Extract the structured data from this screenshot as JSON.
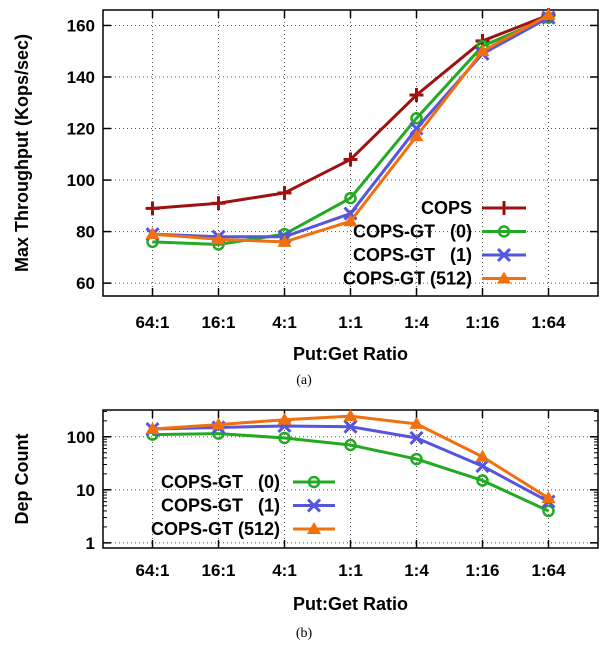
{
  "chart_data": [
    {
      "type": "line",
      "categories": [
        "64:1",
        "16:1",
        "4:1",
        "1:1",
        "1:4",
        "1:16",
        "1:64"
      ],
      "xlabel": "Put:Get Ratio",
      "ylabel": "Max Throughput (Kops/sec)",
      "ylim": [
        55,
        166
      ],
      "yticks": [
        60,
        80,
        100,
        120,
        140,
        160
      ],
      "scale": "linear",
      "grid": true,
      "legend": "right",
      "caption": "(a)",
      "series": [
        {
          "name": "COPS",
          "color": "#a01010",
          "marker": "plus",
          "values": [
            89,
            91,
            95,
            108,
            133,
            154,
            164
          ]
        },
        {
          "name": "COPS-GT   (0)",
          "color": "#22aa22",
          "marker": "circle",
          "values": [
            76,
            75,
            79,
            93,
            124,
            152,
            163
          ]
        },
        {
          "name": "COPS-GT   (1)",
          "color": "#5555dd",
          "marker": "x",
          "values": [
            79,
            78,
            78,
            87,
            120,
            149,
            163
          ]
        },
        {
          "name": "COPS-GT (512)",
          "color": "#f07010",
          "marker": "triangle",
          "values": [
            79,
            77,
            76,
            84,
            117,
            150,
            164
          ]
        }
      ]
    },
    {
      "type": "line",
      "categories": [
        "64:1",
        "16:1",
        "4:1",
        "1:1",
        "1:4",
        "1:16",
        "1:64"
      ],
      "xlabel": "Put:Get Ratio",
      "ylabel": "Dep Count",
      "ylim": [
        0.8,
        320
      ],
      "yticks": [
        1,
        10,
        100
      ],
      "scale": "log",
      "grid": true,
      "legend": "left",
      "caption": "(b)",
      "series": [
        {
          "name": "COPS-GT   (0)",
          "color": "#22aa22",
          "marker": "circle",
          "values": [
            110,
            115,
            95,
            70,
            38,
            15,
            4
          ]
        },
        {
          "name": "COPS-GT   (1)",
          "color": "#5555dd",
          "marker": "x",
          "values": [
            140,
            150,
            160,
            155,
            95,
            28,
            6
          ]
        },
        {
          "name": "COPS-GT (512)",
          "color": "#f07010",
          "marker": "triangle",
          "values": [
            140,
            170,
            210,
            245,
            175,
            42,
            7
          ]
        }
      ]
    }
  ]
}
